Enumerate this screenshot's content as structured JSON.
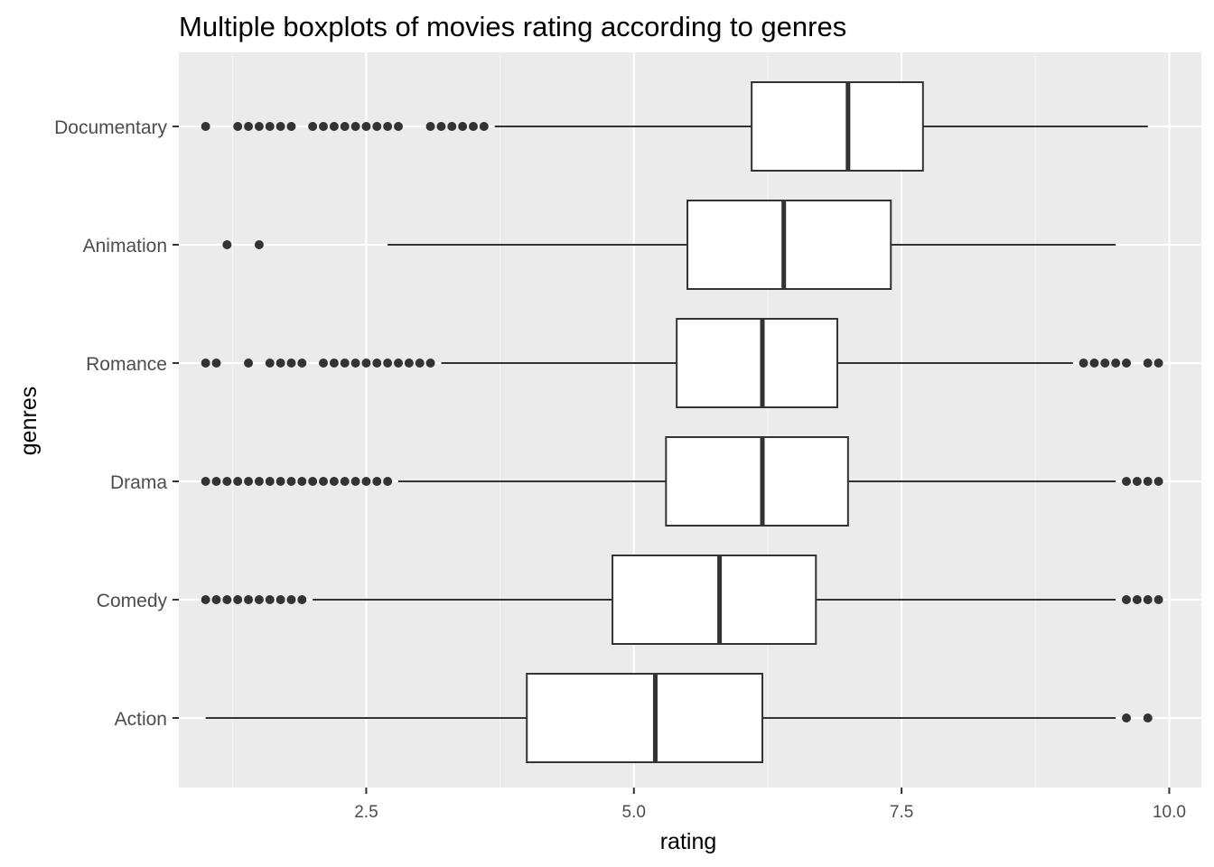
{
  "chart_data": {
    "type": "boxplot",
    "title": "Multiple boxplots of movies rating according to genres",
    "xlabel": "rating",
    "ylabel": "genres",
    "xlim": [
      0.75,
      10.3
    ],
    "x_ticks": [
      2.5,
      5.0,
      7.5,
      10.0
    ],
    "x_tick_labels": [
      "2.5",
      "5.0",
      "7.5",
      "10.0"
    ],
    "x_minor_ticks": [
      1.25,
      3.75,
      6.25,
      8.75
    ],
    "grid": true,
    "colors": {
      "panel_background": "#ebebeb",
      "grid_major": "#ffffff",
      "grid_minor": "#f6f6f6",
      "box_fill": "#ffffff",
      "box_line": "#333333",
      "outlier": "#333333",
      "tick_text": "#4d4d4d"
    },
    "categories": [
      "Documentary",
      "Animation",
      "Romance",
      "Drama",
      "Comedy",
      "Action"
    ],
    "series": [
      {
        "name": "Documentary",
        "whisker_low": 3.7,
        "q1": 6.1,
        "median": 7.0,
        "q3": 7.7,
        "whisker_high": 9.8,
        "outliers": [
          1.0,
          1.3,
          1.4,
          1.5,
          1.6,
          1.7,
          1.8,
          2.0,
          2.1,
          2.2,
          2.3,
          2.4,
          2.5,
          2.6,
          2.7,
          2.8,
          3.1,
          3.2,
          3.3,
          3.4,
          3.5,
          3.6
        ]
      },
      {
        "name": "Animation",
        "whisker_low": 2.7,
        "q1": 5.5,
        "median": 6.4,
        "q3": 7.4,
        "whisker_high": 9.5,
        "outliers": [
          1.2,
          1.5
        ]
      },
      {
        "name": "Romance",
        "whisker_low": 3.2,
        "q1": 5.4,
        "median": 6.2,
        "q3": 6.9,
        "whisker_high": 9.1,
        "outliers": [
          1.0,
          1.1,
          1.4,
          1.6,
          1.7,
          1.8,
          1.9,
          2.1,
          2.2,
          2.3,
          2.4,
          2.5,
          2.6,
          2.7,
          2.8,
          2.9,
          3.0,
          3.1,
          9.2,
          9.3,
          9.4,
          9.5,
          9.6,
          9.8,
          9.9
        ]
      },
      {
        "name": "Drama",
        "whisker_low": 2.8,
        "q1": 5.3,
        "median": 6.2,
        "q3": 7.0,
        "whisker_high": 9.5,
        "outliers": [
          1.0,
          1.1,
          1.2,
          1.3,
          1.4,
          1.5,
          1.6,
          1.7,
          1.8,
          1.9,
          2.0,
          2.1,
          2.2,
          2.3,
          2.4,
          2.5,
          2.6,
          2.7,
          9.6,
          9.7,
          9.8,
          9.9
        ]
      },
      {
        "name": "Comedy",
        "whisker_low": 2.0,
        "q1": 4.8,
        "median": 5.8,
        "q3": 6.7,
        "whisker_high": 9.5,
        "outliers": [
          1.0,
          1.1,
          1.2,
          1.3,
          1.4,
          1.5,
          1.6,
          1.7,
          1.8,
          1.9,
          9.6,
          9.7,
          9.8,
          9.9
        ]
      },
      {
        "name": "Action",
        "whisker_low": 1.0,
        "q1": 4.0,
        "median": 5.2,
        "q3": 6.2,
        "whisker_high": 9.5,
        "outliers": [
          9.6,
          9.8
        ]
      }
    ]
  }
}
